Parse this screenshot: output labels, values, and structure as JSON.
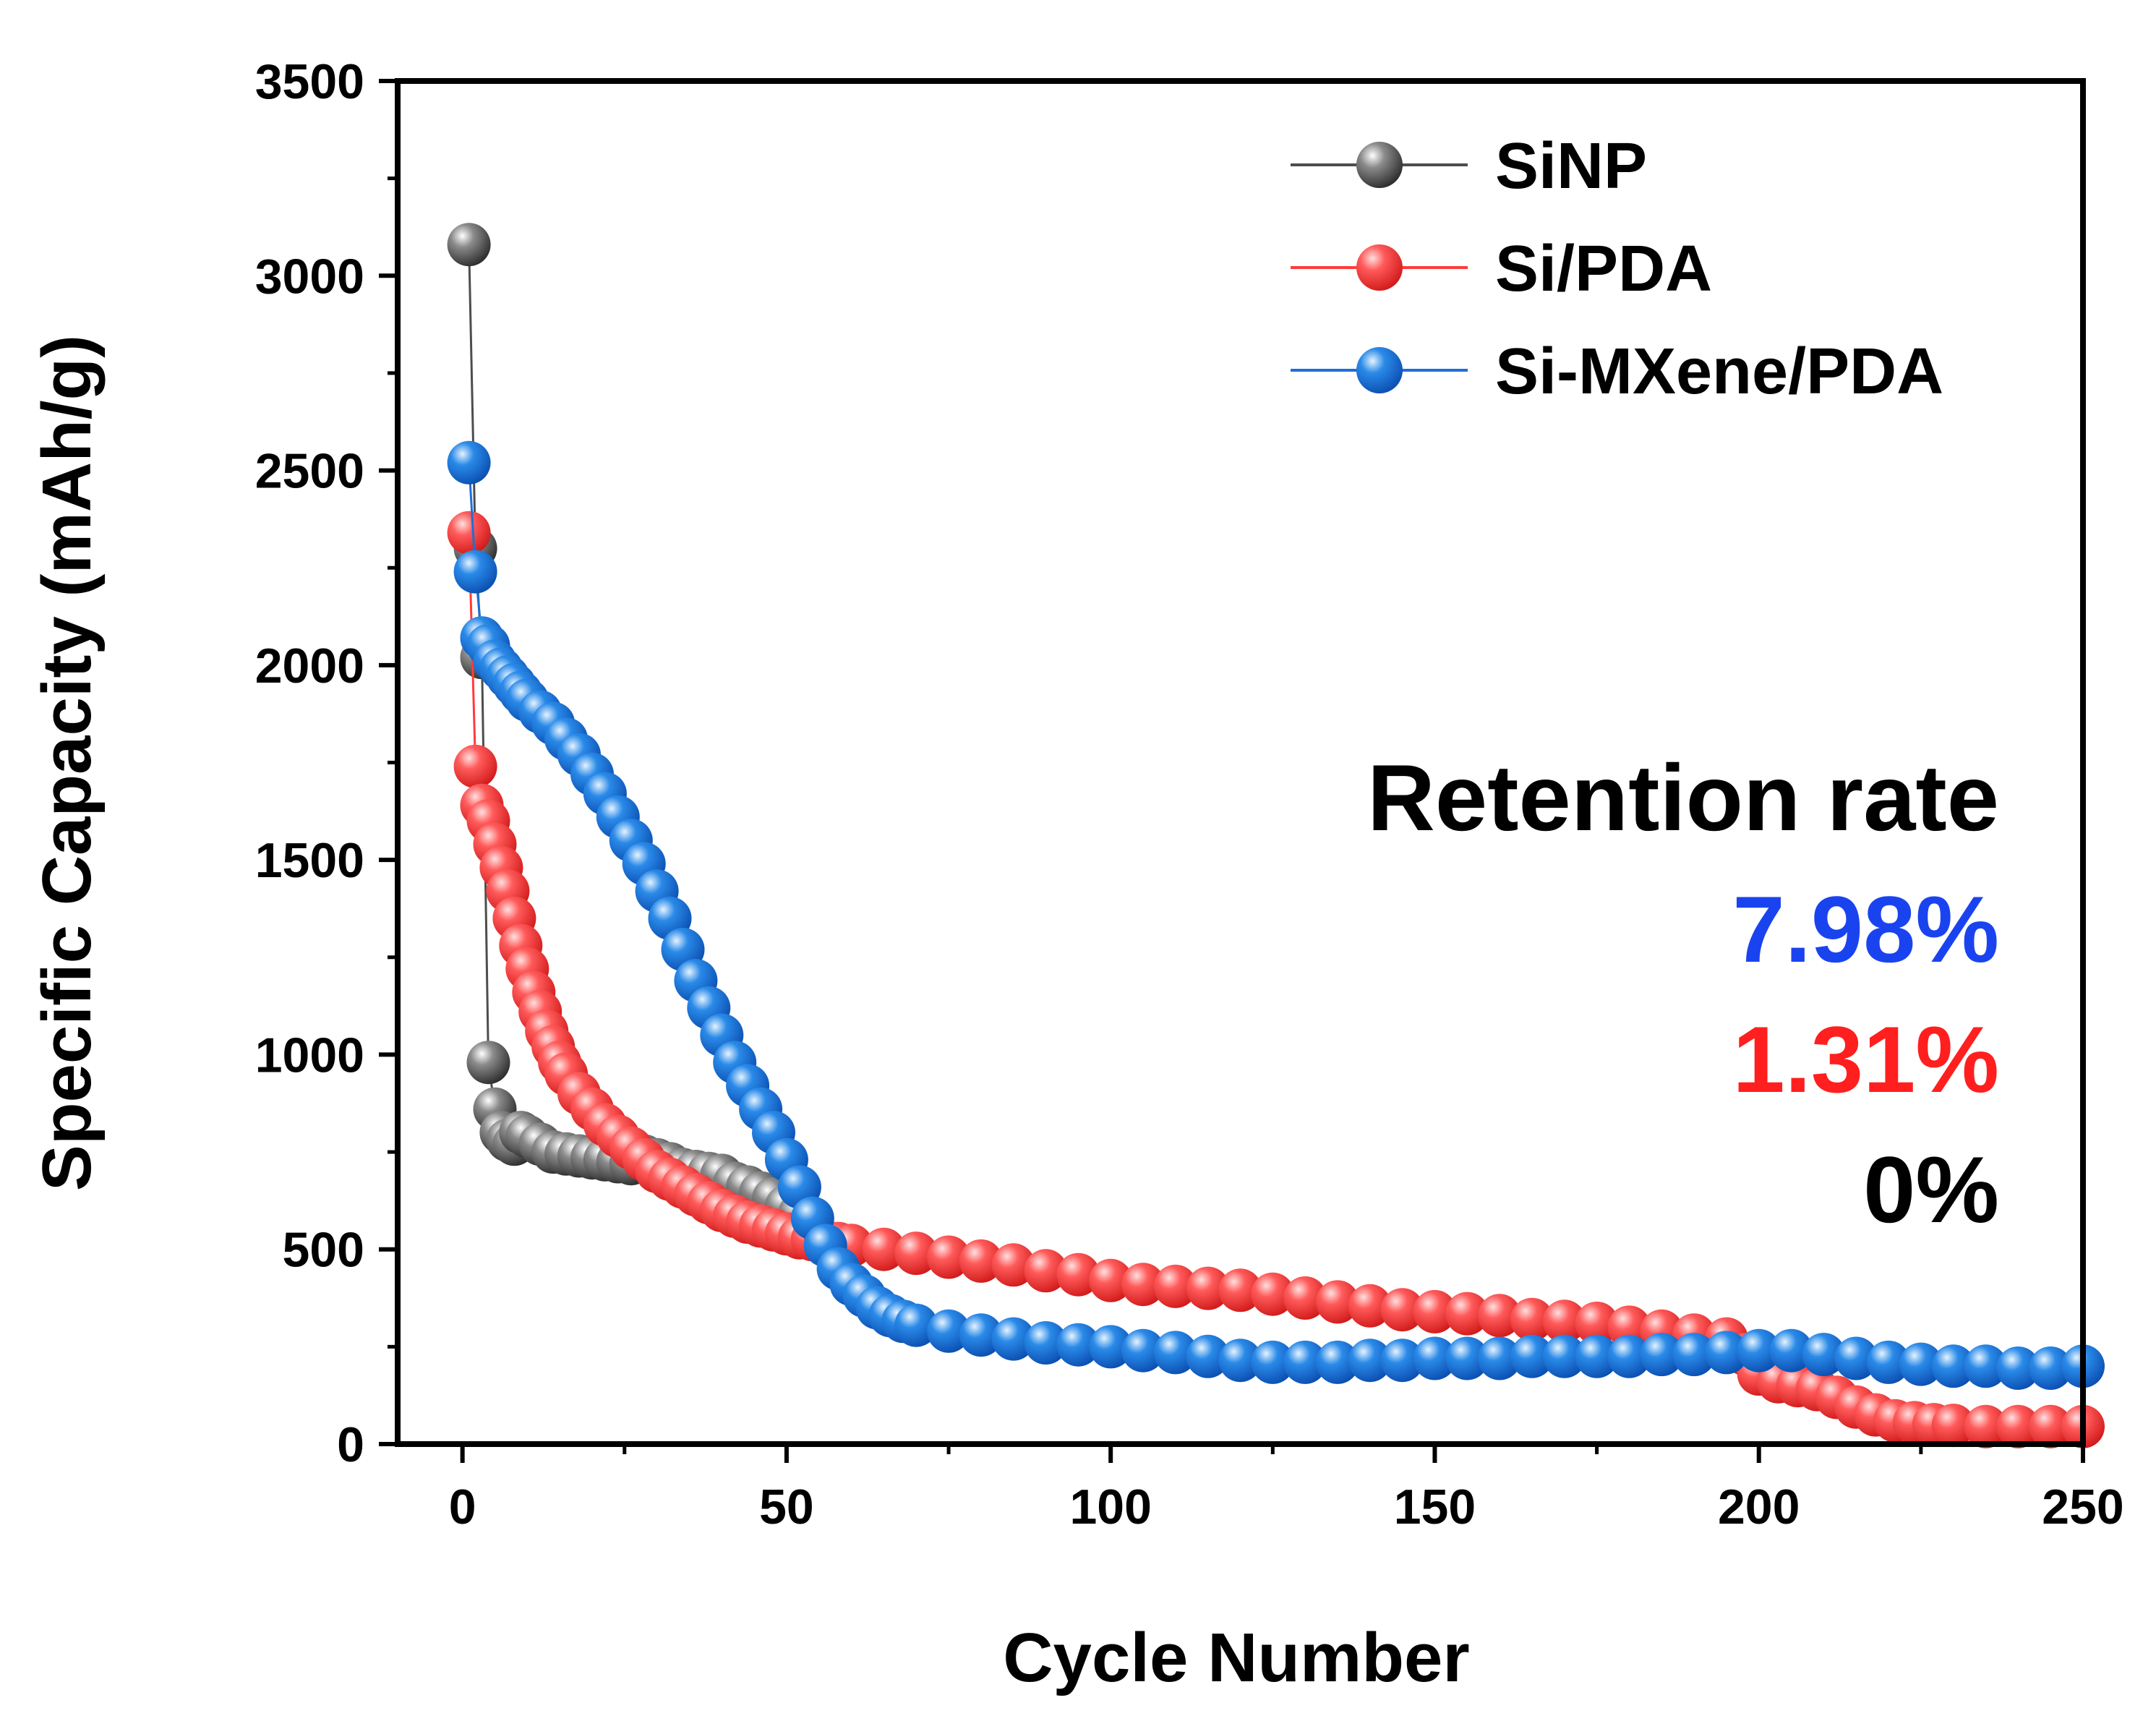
{
  "chart_data": {
    "type": "scatter",
    "xlabel": "Cycle Number",
    "ylabel": "Specific Capacity (mAh/g)",
    "xlim": [
      -10,
      250
    ],
    "ylim": [
      0,
      3500
    ],
    "xticks": [
      0,
      50,
      100,
      150,
      200,
      250
    ],
    "yticks": [
      0,
      500,
      1000,
      1500,
      2000,
      2500,
      3000,
      3500
    ],
    "legend_position": "top-right",
    "series": [
      {
        "name": "SiNP",
        "color": "#4d4d4d",
        "points": [
          [
            1,
            3080
          ],
          [
            2,
            2300
          ],
          [
            3,
            2020
          ],
          [
            4,
            980
          ],
          [
            5,
            860
          ],
          [
            6,
            800
          ],
          [
            7,
            780
          ],
          [
            8,
            770
          ],
          [
            9,
            800
          ],
          [
            10,
            790
          ],
          [
            12,
            770
          ],
          [
            14,
            750
          ],
          [
            16,
            745
          ],
          [
            18,
            740
          ],
          [
            20,
            735
          ],
          [
            22,
            730
          ],
          [
            24,
            725
          ],
          [
            26,
            720
          ],
          [
            28,
            740
          ],
          [
            30,
            730
          ],
          [
            32,
            720
          ],
          [
            34,
            705
          ],
          [
            36,
            700
          ],
          [
            38,
            695
          ],
          [
            40,
            690
          ],
          [
            42,
            670
          ],
          [
            44,
            660
          ],
          [
            46,
            645
          ],
          [
            48,
            630
          ],
          [
            50,
            610
          ],
          [
            52,
            590
          ]
        ]
      },
      {
        "name": "Si/PDA",
        "color": "#ff3b3b",
        "points": [
          [
            1,
            2340
          ],
          [
            2,
            1740
          ],
          [
            3,
            1640
          ],
          [
            4,
            1600
          ],
          [
            5,
            1540
          ],
          [
            6,
            1480
          ],
          [
            7,
            1420
          ],
          [
            8,
            1350
          ],
          [
            9,
            1280
          ],
          [
            10,
            1220
          ],
          [
            11,
            1160
          ],
          [
            12,
            1110
          ],
          [
            13,
            1060
          ],
          [
            14,
            1020
          ],
          [
            15,
            980
          ],
          [
            16,
            950
          ],
          [
            18,
            900
          ],
          [
            20,
            860
          ],
          [
            22,
            820
          ],
          [
            24,
            790
          ],
          [
            26,
            760
          ],
          [
            28,
            730
          ],
          [
            30,
            700
          ],
          [
            32,
            680
          ],
          [
            34,
            660
          ],
          [
            36,
            640
          ],
          [
            38,
            620
          ],
          [
            40,
            600
          ],
          [
            42,
            585
          ],
          [
            44,
            570
          ],
          [
            46,
            560
          ],
          [
            48,
            550
          ],
          [
            50,
            540
          ],
          [
            52,
            530
          ],
          [
            54,
            525
          ],
          [
            56,
            520
          ],
          [
            58,
            515
          ],
          [
            60,
            510
          ],
          [
            65,
            500
          ],
          [
            70,
            490
          ],
          [
            75,
            480
          ],
          [
            80,
            470
          ],
          [
            85,
            460
          ],
          [
            90,
            445
          ],
          [
            95,
            435
          ],
          [
            100,
            420
          ],
          [
            105,
            410
          ],
          [
            110,
            405
          ],
          [
            115,
            400
          ],
          [
            120,
            395
          ],
          [
            125,
            385
          ],
          [
            130,
            375
          ],
          [
            135,
            365
          ],
          [
            140,
            355
          ],
          [
            145,
            345
          ],
          [
            150,
            340
          ],
          [
            155,
            335
          ],
          [
            160,
            330
          ],
          [
            165,
            320
          ],
          [
            170,
            315
          ],
          [
            175,
            310
          ],
          [
            180,
            300
          ],
          [
            185,
            290
          ],
          [
            190,
            280
          ],
          [
            195,
            270
          ],
          [
            198,
            230
          ],
          [
            200,
            180
          ],
          [
            203,
            160
          ],
          [
            206,
            150
          ],
          [
            209,
            140
          ],
          [
            212,
            120
          ],
          [
            215,
            95
          ],
          [
            218,
            75
          ],
          [
            221,
            60
          ],
          [
            224,
            55
          ],
          [
            227,
            50
          ],
          [
            230,
            48
          ],
          [
            235,
            45
          ],
          [
            240,
            45
          ],
          [
            245,
            45
          ],
          [
            250,
            45
          ]
        ]
      },
      {
        "name": "Si-MXene/PDA",
        "color": "#1f6fd6",
        "points": [
          [
            1,
            2520
          ],
          [
            2,
            2240
          ],
          [
            3,
            2070
          ],
          [
            4,
            2050
          ],
          [
            5,
            2010
          ],
          [
            6,
            1990
          ],
          [
            7,
            1970
          ],
          [
            8,
            1950
          ],
          [
            9,
            1930
          ],
          [
            10,
            1910
          ],
          [
            12,
            1880
          ],
          [
            14,
            1850
          ],
          [
            16,
            1810
          ],
          [
            18,
            1770
          ],
          [
            20,
            1720
          ],
          [
            22,
            1670
          ],
          [
            24,
            1610
          ],
          [
            26,
            1550
          ],
          [
            28,
            1490
          ],
          [
            30,
            1420
          ],
          [
            32,
            1350
          ],
          [
            34,
            1270
          ],
          [
            36,
            1190
          ],
          [
            38,
            1120
          ],
          [
            40,
            1050
          ],
          [
            42,
            980
          ],
          [
            44,
            920
          ],
          [
            46,
            860
          ],
          [
            48,
            800
          ],
          [
            50,
            730
          ],
          [
            52,
            660
          ],
          [
            54,
            580
          ],
          [
            56,
            510
          ],
          [
            58,
            450
          ],
          [
            60,
            410
          ],
          [
            62,
            380
          ],
          [
            64,
            350
          ],
          [
            66,
            330
          ],
          [
            68,
            315
          ],
          [
            70,
            305
          ],
          [
            75,
            290
          ],
          [
            80,
            280
          ],
          [
            85,
            270
          ],
          [
            90,
            260
          ],
          [
            95,
            255
          ],
          [
            100,
            250
          ],
          [
            105,
            240
          ],
          [
            110,
            235
          ],
          [
            115,
            225
          ],
          [
            120,
            215
          ],
          [
            125,
            210
          ],
          [
            130,
            210
          ],
          [
            135,
            210
          ],
          [
            140,
            215
          ],
          [
            145,
            215
          ],
          [
            150,
            220
          ],
          [
            155,
            220
          ],
          [
            160,
            220
          ],
          [
            165,
            225
          ],
          [
            170,
            225
          ],
          [
            175,
            225
          ],
          [
            180,
            225
          ],
          [
            185,
            230
          ],
          [
            190,
            230
          ],
          [
            195,
            235
          ],
          [
            200,
            240
          ],
          [
            205,
            240
          ],
          [
            210,
            230
          ],
          [
            215,
            220
          ],
          [
            220,
            210
          ],
          [
            225,
            205
          ],
          [
            230,
            200
          ],
          [
            235,
            200
          ],
          [
            240,
            195
          ],
          [
            245,
            195
          ],
          [
            250,
            200
          ]
        ]
      }
    ],
    "annotation": {
      "title": "Retention rate",
      "values": [
        {
          "text": "7.98%",
          "color": "#1a43f0"
        },
        {
          "text": "1.31%",
          "color": "#ff1f1f"
        },
        {
          "text": "0%",
          "color": "#000000"
        }
      ]
    }
  }
}
